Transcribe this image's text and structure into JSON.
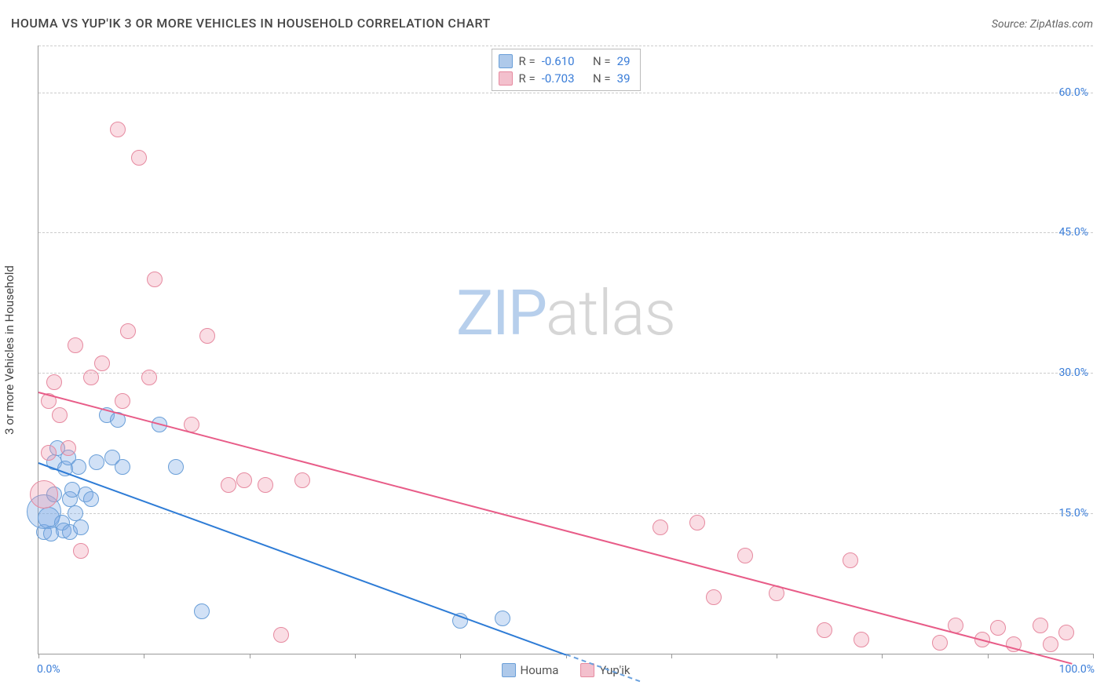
{
  "title": "HOUMA VS YUP'IK 3 OR MORE VEHICLES IN HOUSEHOLD CORRELATION CHART",
  "source": "Source: ZipAtlas.com",
  "watermark_a": "ZIP",
  "watermark_b": "atlas",
  "chart": {
    "type": "scatter",
    "y_axis_label": "3 or more Vehicles in Household",
    "xlim": [
      0,
      100
    ],
    "ylim": [
      0,
      65
    ],
    "y_ticks": [
      15.0,
      30.0,
      45.0,
      60.0
    ],
    "y_tick_labels": [
      "15.0%",
      "30.0%",
      "45.0%",
      "60.0%"
    ],
    "x_tick_labels": {
      "left": "0.0%",
      "right": "100.0%"
    },
    "x_tick_positions": [
      0,
      10,
      20,
      30,
      40,
      50,
      60,
      70,
      80,
      90,
      100
    ],
    "grid_color": "#cccccc",
    "axis_color": "#999999",
    "tick_label_color": "#3a7dd8",
    "background_color": "#ffffff",
    "series": [
      {
        "name": "Houma",
        "fill_color": "rgba(122,170,228,0.35)",
        "stroke_color": "#6a9fd8",
        "trend_color": "#2e7cd6",
        "trend_dash_color": "#6aa1de",
        "swatch_fill": "#aec9ea",
        "swatch_stroke": "#6a9fd8",
        "R": "-0.610",
        "N": "29",
        "trend": {
          "x1": 0,
          "y1": 20.5,
          "x2": 50,
          "y2": 0,
          "dash_to_x": 57
        },
        "points": [
          {
            "x": 0.5,
            "y": 13.0,
            "r": 10
          },
          {
            "x": 0.5,
            "y": 15.2,
            "r": 22
          },
          {
            "x": 1.0,
            "y": 14.5,
            "r": 14
          },
          {
            "x": 1.2,
            "y": 12.8,
            "r": 10
          },
          {
            "x": 1.5,
            "y": 17.0,
            "r": 10
          },
          {
            "x": 1.5,
            "y": 20.5,
            "r": 10
          },
          {
            "x": 1.8,
            "y": 22.0,
            "r": 10
          },
          {
            "x": 2.2,
            "y": 14.0,
            "r": 10
          },
          {
            "x": 2.4,
            "y": 13.2,
            "r": 10
          },
          {
            "x": 2.5,
            "y": 19.8,
            "r": 10
          },
          {
            "x": 2.8,
            "y": 21.0,
            "r": 10
          },
          {
            "x": 3.0,
            "y": 16.5,
            "r": 10
          },
          {
            "x": 3.0,
            "y": 13.0,
            "r": 10
          },
          {
            "x": 3.2,
            "y": 17.5,
            "r": 10
          },
          {
            "x": 3.5,
            "y": 15.0,
            "r": 10
          },
          {
            "x": 3.8,
            "y": 20.0,
            "r": 10
          },
          {
            "x": 4.0,
            "y": 13.5,
            "r": 10
          },
          {
            "x": 4.5,
            "y": 17.0,
            "r": 10
          },
          {
            "x": 5.0,
            "y": 16.5,
            "r": 10
          },
          {
            "x": 5.5,
            "y": 20.5,
            "r": 10
          },
          {
            "x": 6.5,
            "y": 25.5,
            "r": 10
          },
          {
            "x": 7.0,
            "y": 21.0,
            "r": 10
          },
          {
            "x": 7.5,
            "y": 25.0,
            "r": 10
          },
          {
            "x": 8.0,
            "y": 20.0,
            "r": 10
          },
          {
            "x": 11.5,
            "y": 24.5,
            "r": 10
          },
          {
            "x": 13.0,
            "y": 20.0,
            "r": 10
          },
          {
            "x": 15.5,
            "y": 4.5,
            "r": 10
          },
          {
            "x": 40.0,
            "y": 3.5,
            "r": 10
          },
          {
            "x": 44.0,
            "y": 3.8,
            "r": 10
          }
        ]
      },
      {
        "name": "Yup'ik",
        "fill_color": "rgba(240,150,170,0.32)",
        "stroke_color": "#e68aa0",
        "trend_color": "#e85c88",
        "swatch_fill": "#f3c0cd",
        "swatch_stroke": "#e68aa0",
        "R": "-0.703",
        "N": "39",
        "trend": {
          "x1": 0,
          "y1": 28.0,
          "x2": 98,
          "y2": -1.0
        },
        "points": [
          {
            "x": 0.5,
            "y": 17.0,
            "r": 18
          },
          {
            "x": 1.0,
            "y": 21.5,
            "r": 10
          },
          {
            "x": 1.0,
            "y": 27.0,
            "r": 10
          },
          {
            "x": 1.5,
            "y": 29.0,
            "r": 10
          },
          {
            "x": 2.0,
            "y": 25.5,
            "r": 10
          },
          {
            "x": 2.8,
            "y": 22.0,
            "r": 10
          },
          {
            "x": 3.5,
            "y": 33.0,
            "r": 10
          },
          {
            "x": 4.0,
            "y": 11.0,
            "r": 10
          },
          {
            "x": 5.0,
            "y": 29.5,
            "r": 10
          },
          {
            "x": 6.0,
            "y": 31.0,
            "r": 10
          },
          {
            "x": 7.5,
            "y": 56.0,
            "r": 10
          },
          {
            "x": 8.0,
            "y": 27.0,
            "r": 10
          },
          {
            "x": 8.5,
            "y": 34.5,
            "r": 10
          },
          {
            "x": 9.5,
            "y": 53.0,
            "r": 10
          },
          {
            "x": 10.5,
            "y": 29.5,
            "r": 10
          },
          {
            "x": 11.0,
            "y": 40.0,
            "r": 10
          },
          {
            "x": 14.5,
            "y": 24.5,
            "r": 10
          },
          {
            "x": 16.0,
            "y": 34.0,
            "r": 10
          },
          {
            "x": 18.0,
            "y": 18.0,
            "r": 10
          },
          {
            "x": 19.5,
            "y": 18.5,
            "r": 10
          },
          {
            "x": 21.5,
            "y": 18.0,
            "r": 10
          },
          {
            "x": 23.0,
            "y": 2.0,
            "r": 10
          },
          {
            "x": 25.0,
            "y": 18.5,
            "r": 10
          },
          {
            "x": 59.0,
            "y": 13.5,
            "r": 10
          },
          {
            "x": 62.5,
            "y": 14.0,
            "r": 10
          },
          {
            "x": 64.0,
            "y": 6.0,
            "r": 10
          },
          {
            "x": 67.0,
            "y": 10.5,
            "r": 10
          },
          {
            "x": 70.0,
            "y": 6.5,
            "r": 10
          },
          {
            "x": 74.5,
            "y": 2.5,
            "r": 10
          },
          {
            "x": 77.0,
            "y": 10.0,
            "r": 10
          },
          {
            "x": 78.0,
            "y": 1.5,
            "r": 10
          },
          {
            "x": 85.5,
            "y": 1.2,
            "r": 10
          },
          {
            "x": 87.0,
            "y": 3.0,
            "r": 10
          },
          {
            "x": 89.5,
            "y": 1.5,
            "r": 10
          },
          {
            "x": 91.0,
            "y": 2.8,
            "r": 10
          },
          {
            "x": 92.5,
            "y": 1.0,
            "r": 10
          },
          {
            "x": 95.0,
            "y": 3.0,
            "r": 10
          },
          {
            "x": 96.0,
            "y": 1.0,
            "r": 10
          },
          {
            "x": 97.5,
            "y": 2.3,
            "r": 10
          }
        ]
      }
    ]
  },
  "stats_legend": {
    "R_label": "R =",
    "N_label": "N ="
  }
}
